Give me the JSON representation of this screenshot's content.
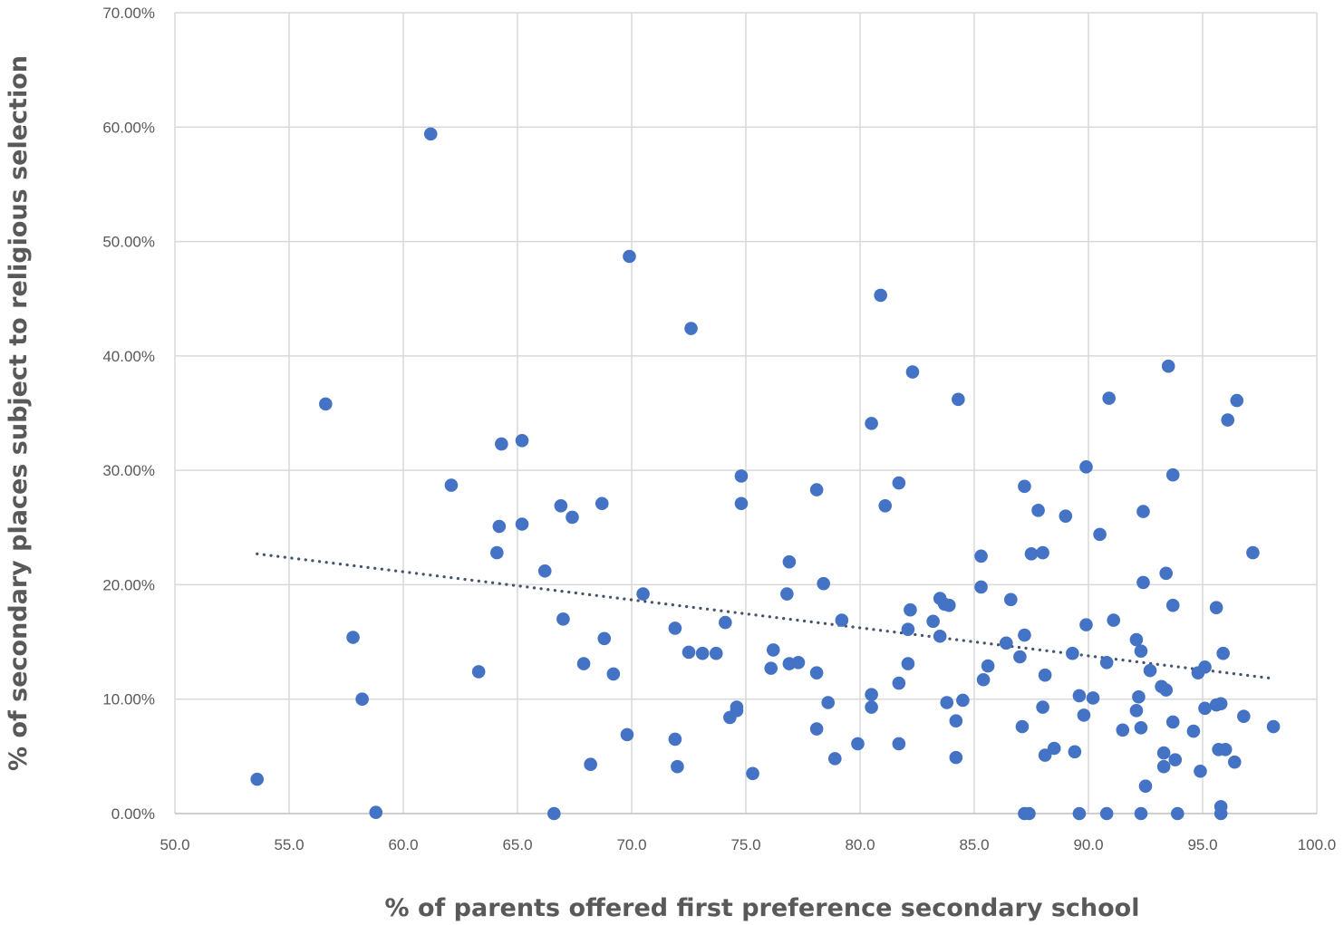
{
  "chart_data": {
    "type": "scatter",
    "title": "",
    "xlabel": "% of parents offered first preference secondary school",
    "ylabel": "% of secondary places subject to religious selection",
    "xlim": [
      50,
      100
    ],
    "ylim": [
      0,
      70
    ],
    "x_ticks": [
      50,
      55,
      60,
      65,
      70,
      75,
      80,
      85,
      90,
      95,
      100
    ],
    "x_tick_labels": [
      "50.0",
      "55.0",
      "60.0",
      "65.0",
      "70.0",
      "75.0",
      "80.0",
      "85.0",
      "90.0",
      "95.0",
      "100.0"
    ],
    "y_ticks": [
      0,
      10,
      20,
      30,
      40,
      50,
      60,
      70
    ],
    "y_tick_labels": [
      "0.00%",
      "10.00%",
      "20.00%",
      "30.00%",
      "40.00%",
      "50.00%",
      "60.00%",
      "70.00%"
    ],
    "grid": true,
    "legend": "none",
    "marker_color": "#4472C4",
    "trendline": {
      "type": "linear",
      "style": "dotted",
      "color": "#44546A",
      "from": [
        53.6,
        22.7
      ],
      "to": [
        98.1,
        11.8
      ]
    },
    "points": [
      [
        53.6,
        3.0
      ],
      [
        56.6,
        35.8
      ],
      [
        57.8,
        15.4
      ],
      [
        58.2,
        10.0
      ],
      [
        58.8,
        0.1
      ],
      [
        61.2,
        59.4
      ],
      [
        62.1,
        28.7
      ],
      [
        63.3,
        12.4
      ],
      [
        64.1,
        22.8
      ],
      [
        64.2,
        25.1
      ],
      [
        64.3,
        32.3
      ],
      [
        65.2,
        32.6
      ],
      [
        65.2,
        25.3
      ],
      [
        66.2,
        21.2
      ],
      [
        66.6,
        0.0
      ],
      [
        66.9,
        26.9
      ],
      [
        67.0,
        17.0
      ],
      [
        67.4,
        25.9
      ],
      [
        67.9,
        13.1
      ],
      [
        68.2,
        4.3
      ],
      [
        68.7,
        27.1
      ],
      [
        68.8,
        15.3
      ],
      [
        69.2,
        12.2
      ],
      [
        69.8,
        6.9
      ],
      [
        69.9,
        48.7
      ],
      [
        70.5,
        19.2
      ],
      [
        71.9,
        16.2
      ],
      [
        71.9,
        6.5
      ],
      [
        72.0,
        4.1
      ],
      [
        72.5,
        14.1
      ],
      [
        72.6,
        42.4
      ],
      [
        73.1,
        14.0
      ],
      [
        73.7,
        14.0
      ],
      [
        74.1,
        16.7
      ],
      [
        74.3,
        8.4
      ],
      [
        74.6,
        9.0
      ],
      [
        74.6,
        9.3
      ],
      [
        74.8,
        29.5
      ],
      [
        74.8,
        27.1
      ],
      [
        75.3,
        3.5
      ],
      [
        76.1,
        12.7
      ],
      [
        76.2,
        14.3
      ],
      [
        76.8,
        19.2
      ],
      [
        76.9,
        22.0
      ],
      [
        76.9,
        13.1
      ],
      [
        77.3,
        13.2
      ],
      [
        78.1,
        28.3
      ],
      [
        78.1,
        12.3
      ],
      [
        78.1,
        7.4
      ],
      [
        78.4,
        20.1
      ],
      [
        78.6,
        9.7
      ],
      [
        78.9,
        4.8
      ],
      [
        79.2,
        16.9
      ],
      [
        79.9,
        6.1
      ],
      [
        80.5,
        34.1
      ],
      [
        80.5,
        10.4
      ],
      [
        80.5,
        9.3
      ],
      [
        80.9,
        45.3
      ],
      [
        81.1,
        26.9
      ],
      [
        81.7,
        28.9
      ],
      [
        81.7,
        11.4
      ],
      [
        81.7,
        6.1
      ],
      [
        82.1,
        16.1
      ],
      [
        82.1,
        13.1
      ],
      [
        82.2,
        17.8
      ],
      [
        82.3,
        38.6
      ],
      [
        83.2,
        16.8
      ],
      [
        83.5,
        18.8
      ],
      [
        83.5,
        15.5
      ],
      [
        83.7,
        18.3
      ],
      [
        83.8,
        9.7
      ],
      [
        83.9,
        18.2
      ],
      [
        84.2,
        8.1
      ],
      [
        84.2,
        4.9
      ],
      [
        84.3,
        36.2
      ],
      [
        84.5,
        9.9
      ],
      [
        85.3,
        22.5
      ],
      [
        85.3,
        19.8
      ],
      [
        85.4,
        11.7
      ],
      [
        85.6,
        12.9
      ],
      [
        86.4,
        14.9
      ],
      [
        86.6,
        18.7
      ],
      [
        87.0,
        13.7
      ],
      [
        87.1,
        7.6
      ],
      [
        87.2,
        28.6
      ],
      [
        87.2,
        15.6
      ],
      [
        87.2,
        0.0
      ],
      [
        87.4,
        0.0
      ],
      [
        87.5,
        22.7
      ],
      [
        87.8,
        26.5
      ],
      [
        88.0,
        22.8
      ],
      [
        88.0,
        9.3
      ],
      [
        88.1,
        12.1
      ],
      [
        88.1,
        5.1
      ],
      [
        88.5,
        5.7
      ],
      [
        89.0,
        26.0
      ],
      [
        89.3,
        14.0
      ],
      [
        89.4,
        5.4
      ],
      [
        89.6,
        10.3
      ],
      [
        89.6,
        0.0
      ],
      [
        89.8,
        8.6
      ],
      [
        89.9,
        30.3
      ],
      [
        89.9,
        16.5
      ],
      [
        90.2,
        10.1
      ],
      [
        90.5,
        24.4
      ],
      [
        90.8,
        13.2
      ],
      [
        90.8,
        0.0
      ],
      [
        90.9,
        36.3
      ],
      [
        91.1,
        16.9
      ],
      [
        91.5,
        7.3
      ],
      [
        92.1,
        15.2
      ],
      [
        92.1,
        9.0
      ],
      [
        92.2,
        10.2
      ],
      [
        92.3,
        14.2
      ],
      [
        92.3,
        7.5
      ],
      [
        92.3,
        0.0
      ],
      [
        92.4,
        26.4
      ],
      [
        92.4,
        20.2
      ],
      [
        92.5,
        2.4
      ],
      [
        92.7,
        12.5
      ],
      [
        93.2,
        11.1
      ],
      [
        93.3,
        5.3
      ],
      [
        93.3,
        4.1
      ],
      [
        93.4,
        21.0
      ],
      [
        93.4,
        10.8
      ],
      [
        93.5,
        39.1
      ],
      [
        93.7,
        29.6
      ],
      [
        93.7,
        18.2
      ],
      [
        93.7,
        8.0
      ],
      [
        93.8,
        4.7
      ],
      [
        93.9,
        0.0
      ],
      [
        94.6,
        7.2
      ],
      [
        94.8,
        12.3
      ],
      [
        94.9,
        3.7
      ],
      [
        95.1,
        9.2
      ],
      [
        95.1,
        12.8
      ],
      [
        95.6,
        18.0
      ],
      [
        95.6,
        9.5
      ],
      [
        95.7,
        5.6
      ],
      [
        95.8,
        9.6
      ],
      [
        95.8,
        0.6
      ],
      [
        95.8,
        0.0
      ],
      [
        95.9,
        14.0
      ],
      [
        96.0,
        5.6
      ],
      [
        96.1,
        34.4
      ],
      [
        96.4,
        4.5
      ],
      [
        96.5,
        36.1
      ],
      [
        96.8,
        8.5
      ],
      [
        97.2,
        22.8
      ],
      [
        98.1,
        7.6
      ]
    ]
  }
}
